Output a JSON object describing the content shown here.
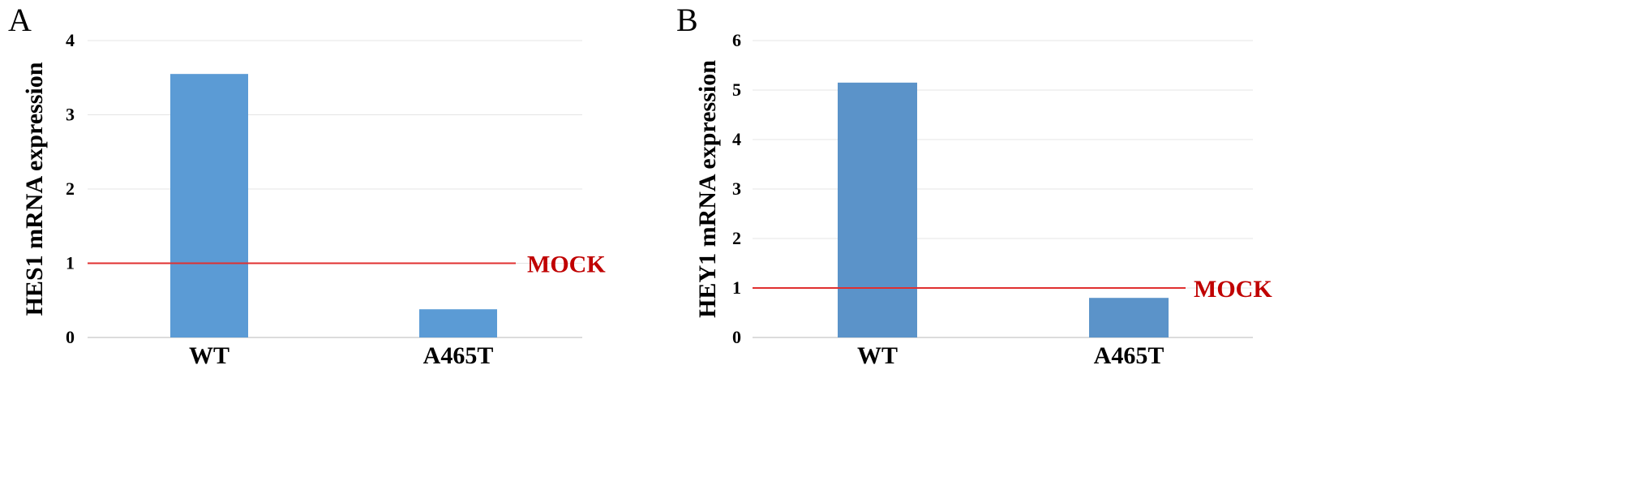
{
  "chart_data": [
    {
      "panel": "A",
      "type": "bar",
      "categories": [
        "WT",
        "A465T"
      ],
      "values": [
        3.55,
        0.38
      ],
      "ylabel": "HES1 mRNA expression",
      "yticks": [
        0,
        1,
        2,
        3,
        4
      ],
      "ylim": [
        0,
        4
      ],
      "grid": true,
      "bar_color": "#5b9bd5",
      "reference_line": {
        "value": 1,
        "label": "MOCK",
        "color": "#e03030",
        "label_color": "#c00000"
      }
    },
    {
      "panel": "B",
      "type": "bar",
      "categories": [
        "WT",
        "A465T"
      ],
      "values": [
        5.15,
        0.8
      ],
      "ylabel": "HEY1 mRNA expression",
      "yticks": [
        0,
        1,
        2,
        3,
        4,
        5,
        6
      ],
      "ylim": [
        0,
        6
      ],
      "grid": true,
      "bar_color": "#5b93c9",
      "reference_line": {
        "value": 1,
        "label": "MOCK",
        "color": "#e03030",
        "label_color": "#c00000"
      }
    }
  ]
}
